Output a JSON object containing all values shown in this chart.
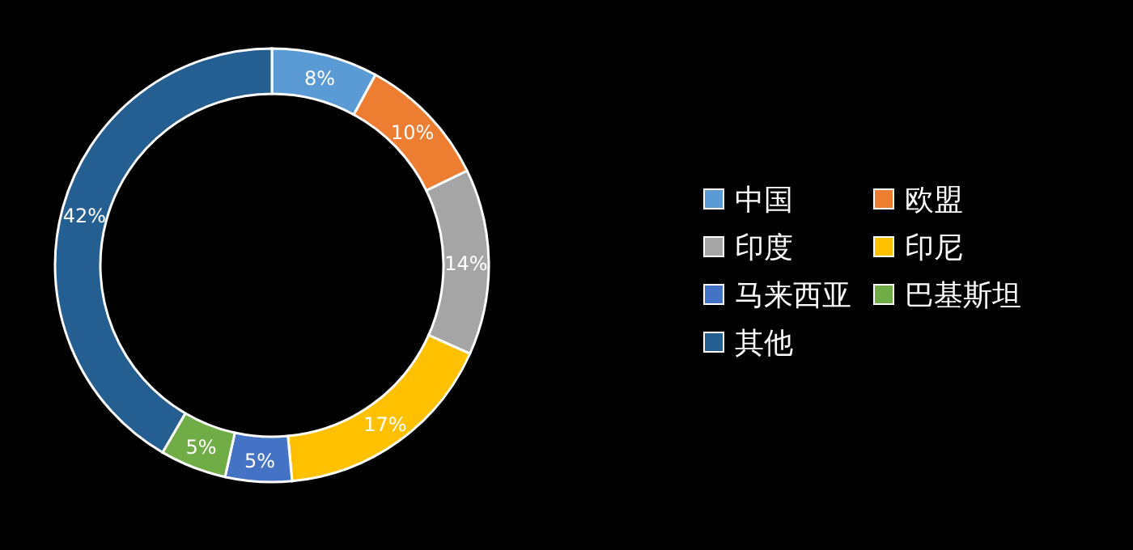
{
  "chart_data": {
    "type": "donut",
    "categories": [
      "中国",
      "欧盟",
      "印度",
      "印尼",
      "马来西亚",
      "巴基斯坦",
      "其他"
    ],
    "values": [
      8,
      10,
      14,
      17,
      5,
      5,
      42
    ],
    "colors": [
      "#5b9bd5",
      "#ed7d31",
      "#a5a5a5",
      "#ffc000",
      "#4472c4",
      "#70ad47",
      "#255e91"
    ],
    "value_labels": [
      "8%",
      "10%",
      "14%",
      "17%",
      "5%",
      "5%",
      "42%"
    ],
    "legend": "right"
  }
}
